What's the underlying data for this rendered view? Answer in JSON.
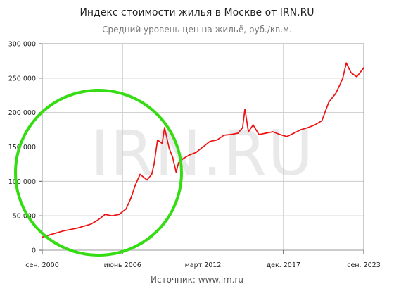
{
  "header": {
    "title": "Индекс стоимости жилья в Москве от IRN.RU",
    "subtitle": "Средний уровень цен на жильё, руб./кв.м."
  },
  "footer": {
    "source": "Источник: www.irn.ru"
  },
  "watermark": "IRN.RU",
  "colors": {
    "line": "#ee1111",
    "grid": "#cccccc",
    "annotation_circle": "#33dd11"
  },
  "chart_data": {
    "type": "line",
    "title": "Индекс стоимости жилья в Москве от IRN.RU",
    "subtitle": "Средний уровень цен на жильё, руб./кв.м.",
    "xlabel": "",
    "ylabel": "",
    "ylim": [
      0,
      300000
    ],
    "xlim": [
      "2000-09",
      "2023-09"
    ],
    "grid": true,
    "x_ticks": [
      {
        "date": "2000-09",
        "label": "сен. 2000"
      },
      {
        "date": "2006-06",
        "label": "июнь 2006"
      },
      {
        "date": "2012-03",
        "label": "март 2012"
      },
      {
        "date": "2017-12",
        "label": "дек. 2017"
      },
      {
        "date": "2023-09",
        "label": "сен. 2023"
      }
    ],
    "y_ticks": [
      {
        "value": 0,
        "label": "0"
      },
      {
        "value": 50000,
        "label": "50 000"
      },
      {
        "value": 100000,
        "label": "100 000"
      },
      {
        "value": 150000,
        "label": "150 000"
      },
      {
        "value": 200000,
        "label": "200 000"
      },
      {
        "value": 250000,
        "label": "250 000"
      },
      {
        "value": 300000,
        "label": "300 000"
      }
    ],
    "series": [
      {
        "x": [
          "2000-09",
          "2001-03",
          "2001-09",
          "2002-03",
          "2002-09",
          "2003-03",
          "2003-09",
          "2004-03",
          "2004-09",
          "2005-03",
          "2005-09",
          "2006-03",
          "2006-09",
          "2007-01",
          "2007-05",
          "2007-09",
          "2008-03",
          "2008-07",
          "2008-09",
          "2008-12",
          "2009-04",
          "2009-06",
          "2009-10",
          "2010-01",
          "2010-04",
          "2010-06",
          "2010-10",
          "2011-03",
          "2011-09",
          "2012-03",
          "2012-09",
          "2013-03",
          "2013-09",
          "2014-03",
          "2014-09",
          "2015-01",
          "2015-03",
          "2015-06",
          "2015-10",
          "2016-03",
          "2016-09",
          "2017-03",
          "2017-09",
          "2018-03",
          "2018-09",
          "2019-03",
          "2019-09",
          "2020-03",
          "2020-09",
          "2021-03",
          "2021-09",
          "2022-01",
          "2022-03",
          "2022-06",
          "2022-10",
          "2023-03",
          "2023-09"
        ],
        "values": [
          19000,
          22000,
          25000,
          28000,
          30000,
          32000,
          35000,
          38000,
          44000,
          52000,
          50000,
          52000,
          60000,
          75000,
          95000,
          110000,
          102000,
          110000,
          125000,
          160000,
          155000,
          178000,
          148000,
          135000,
          113000,
          127000,
          133000,
          138000,
          142000,
          150000,
          158000,
          160000,
          167000,
          168000,
          170000,
          178000,
          205000,
          172000,
          182000,
          168000,
          170000,
          172000,
          168000,
          165000,
          170000,
          175000,
          178000,
          182000,
          188000,
          215000,
          228000,
          242000,
          250000,
          272000,
          258000,
          252000,
          265000
        ]
      }
    ],
    "annotation": {
      "type": "circle",
      "color": "#33dd11"
    }
  }
}
